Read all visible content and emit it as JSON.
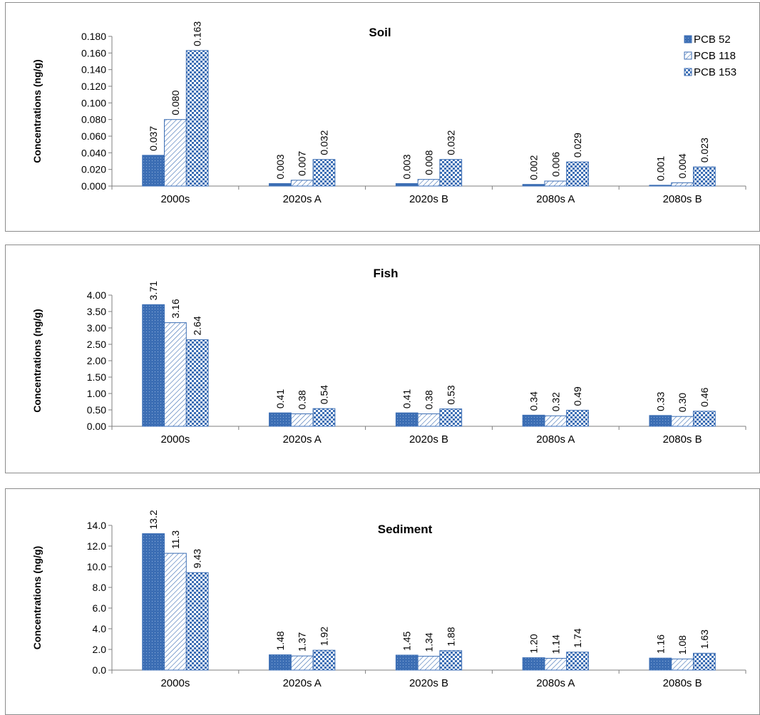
{
  "legend": {
    "items": [
      "PCB 52",
      "PCB 118",
      "PCB 153"
    ]
  },
  "colors": {
    "bar_fill": "#3c6eb4",
    "bar_light": "#8fb0dc",
    "axis": "#7f7f7f",
    "border": "#8c8c8c"
  },
  "chart_data": [
    {
      "type": "bar",
      "title": "Soil",
      "ylabel": "Concentrations (ng/g)",
      "xlabel": "",
      "categories": [
        "2000s",
        "2020s A",
        "2020s B",
        "2080s A",
        "2080s B"
      ],
      "ylim": [
        0,
        0.18
      ],
      "yticks": [
        "0.000",
        "0.020",
        "0.040",
        "0.060",
        "0.080",
        "0.100",
        "0.120",
        "0.140",
        "0.160",
        "0.180"
      ],
      "legend_position": "top-right",
      "grid": false,
      "series": [
        {
          "name": "PCB 52",
          "values": [
            0.037,
            0.003,
            0.003,
            0.002,
            0.001
          ],
          "labels": [
            "0.037",
            "0.003",
            "0.003",
            "0.002",
            "0.001"
          ]
        },
        {
          "name": "PCB 118",
          "values": [
            0.08,
            0.007,
            0.008,
            0.006,
            0.004
          ],
          "labels": [
            "0.080",
            "0.007",
            "0.008",
            "0.006",
            "0.004"
          ]
        },
        {
          "name": "PCB 153",
          "values": [
            0.163,
            0.032,
            0.032,
            0.029,
            0.023
          ],
          "labels": [
            "0.163",
            "0.032",
            "0.032",
            "0.029",
            "0.023"
          ]
        }
      ]
    },
    {
      "type": "bar",
      "title": "Fish",
      "ylabel": "Concentrations (ng/g)",
      "xlabel": "",
      "categories": [
        "2000s",
        "2020s A",
        "2020s B",
        "2080s A",
        "2080s B"
      ],
      "ylim": [
        0,
        4.0
      ],
      "yticks": [
        "0.00",
        "0.50",
        "1.00",
        "1.50",
        "2.00",
        "2.50",
        "3.00",
        "3.50",
        "4.00"
      ],
      "grid": false,
      "series": [
        {
          "name": "PCB 52",
          "values": [
            3.71,
            0.41,
            0.41,
            0.34,
            0.33
          ],
          "labels": [
            "3.71",
            "0.41",
            "0.41",
            "0.34",
            "0.33"
          ]
        },
        {
          "name": "PCB 118",
          "values": [
            3.16,
            0.38,
            0.38,
            0.32,
            0.3
          ],
          "labels": [
            "3.16",
            "0.38",
            "0.38",
            "0.32",
            "0.30"
          ]
        },
        {
          "name": "PCB 153",
          "values": [
            2.64,
            0.54,
            0.53,
            0.49,
            0.46
          ],
          "labels": [
            "2.64",
            "0.54",
            "0.53",
            "0.49",
            "0.46"
          ]
        }
      ]
    },
    {
      "type": "bar",
      "title": "Sediment",
      "ylabel": "Concentrations (ng/g)",
      "xlabel": "",
      "categories": [
        "2000s",
        "2020s A",
        "2020s B",
        "2080s A",
        "2080s B"
      ],
      "ylim": [
        0,
        14.0
      ],
      "yticks": [
        "0.0",
        "2.0",
        "4.0",
        "6.0",
        "8.0",
        "10.0",
        "12.0",
        "14.0"
      ],
      "grid": false,
      "series": [
        {
          "name": "PCB 52",
          "values": [
            13.2,
            1.48,
            1.45,
            1.2,
            1.16
          ],
          "labels": [
            "13.2",
            "1.48",
            "1.45",
            "1.20",
            "1.16"
          ]
        },
        {
          "name": "PCB 118",
          "values": [
            11.3,
            1.37,
            1.34,
            1.14,
            1.08
          ],
          "labels": [
            "11.3",
            "1.37",
            "1.34",
            "1.14",
            "1.08"
          ]
        },
        {
          "name": "PCB 153",
          "values": [
            9.43,
            1.92,
            1.88,
            1.74,
            1.63
          ],
          "labels": [
            "9.43",
            "1.92",
            "1.88",
            "1.74",
            "1.63"
          ]
        }
      ]
    }
  ]
}
